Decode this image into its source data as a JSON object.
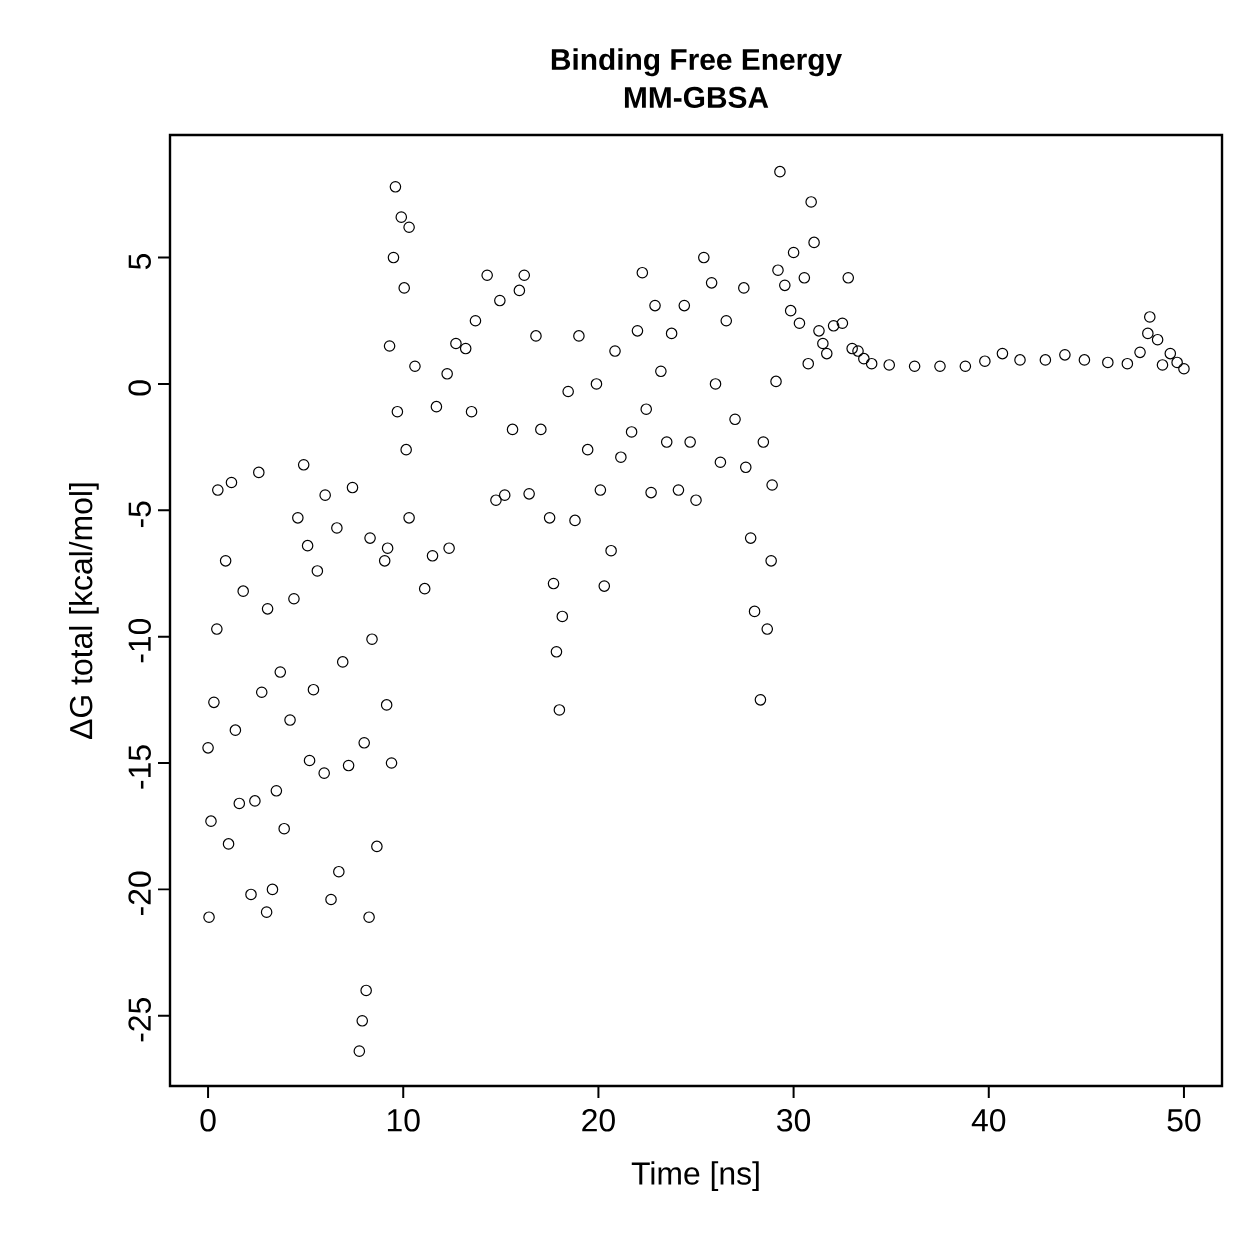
{
  "chart_data": {
    "type": "scatter",
    "title": "Binding Free Energy",
    "subtitle": "MM-GBSA",
    "xlabel": "Time [ns]",
    "ylabel": "ΔG total [kcal/mol]",
    "xlim": [
      -1.95,
      51.95
    ],
    "ylim": [
      -27.78,
      9.85
    ],
    "xticks": [
      0,
      10,
      20,
      30,
      40,
      50
    ],
    "yticks": [
      -25,
      -20,
      -15,
      -10,
      -5,
      0,
      5
    ],
    "marker": "circle",
    "grid": false,
    "series": [
      {
        "color": "#000000",
        "x": [
          0.05,
          0,
          0.15,
          0.3,
          0.5,
          0.45,
          0.9,
          1.2,
          1.05,
          1.4,
          1.8,
          2.2,
          2.6,
          2.75,
          3.0,
          3.05,
          3.3,
          3.7,
          3.9,
          4.4,
          4.6,
          4.9,
          5.1,
          5.2,
          5.6,
          6.0,
          5.95,
          6.3,
          6.7,
          6.6,
          7.4,
          7.75,
          7.9,
          8.1,
          8.25,
          8.3,
          8.4,
          8.65,
          9.05,
          9.15,
          9.4,
          9.2,
          9.3,
          9.5,
          9.6,
          9.9,
          10.3,
          9.7,
          10.05,
          10.15,
          10.3,
          10.6,
          11.1,
          11.5,
          11.7,
          12.25,
          12.35,
          12.7,
          13.2,
          13.5,
          13.7,
          14.3,
          14.75,
          14.95,
          15.2,
          15.6,
          15.95,
          16.2,
          16.45,
          16.8,
          17.05,
          17.5,
          17.7,
          17.85,
          18.0,
          18.15,
          18.45,
          18.8,
          19.0,
          19.45,
          19.9,
          20.1,
          20.3,
          20.65,
          20.85,
          21.15,
          21.7,
          22.0,
          22.25,
          22.45,
          22.7,
          22.9,
          23.2,
          23.5,
          23.75,
          24.1,
          24.4,
          24.7,
          25.0,
          25.4,
          25.8,
          26.0,
          26.25,
          26.55,
          27.0,
          27.45,
          27.55,
          27.8,
          28.0,
          28.3,
          28.45,
          28.65,
          28.85,
          28.9,
          29.1,
          29.2,
          29.3,
          29.55,
          29.85,
          30.0,
          30.3,
          30.55,
          30.75,
          30.9,
          31.05,
          31.3,
          31.5,
          31.7,
          32.05,
          32.5,
          32.8,
          33.0,
          33.3,
          33.6,
          34.0,
          34.9,
          36.2,
          37.5,
          38.8,
          39.8,
          40.7,
          41.6,
          42.9,
          43.9,
          44.9,
          46.1,
          47.1,
          47.75,
          48.15,
          48.25,
          48.65,
          48.9,
          49.3,
          49.65,
          50,
          1.6,
          2.4,
          3.5,
          4.2,
          5.4,
          6.9,
          7.2,
          8.0
        ],
        "values": [
          -21.1,
          -14.4,
          -17.3,
          -12.6,
          -4.2,
          -9.7,
          -7.0,
          -3.9,
          -18.2,
          -13.7,
          -8.2,
          -20.2,
          -3.5,
          -12.2,
          -20.9,
          -8.9,
          -20.0,
          -11.4,
          -17.6,
          -8.5,
          -5.3,
          -3.2,
          -6.4,
          -14.9,
          -7.4,
          -4.4,
          -15.4,
          -20.4,
          -19.3,
          -5.7,
          -4.1,
          -26.4,
          -25.2,
          -24.0,
          -21.1,
          -6.1,
          -10.1,
          -18.3,
          -7.0,
          -12.7,
          -15.0,
          -6.5,
          1.5,
          5.0,
          7.8,
          6.6,
          6.2,
          -1.1,
          3.8,
          -2.6,
          -5.3,
          0.7,
          -8.1,
          -6.8,
          -0.9,
          0.4,
          -6.5,
          1.6,
          1.4,
          -1.1,
          2.5,
          4.3,
          -4.6,
          3.3,
          -4.4,
          -1.8,
          3.7,
          4.3,
          -4.35,
          1.9,
          -1.8,
          -5.3,
          -7.9,
          -10.6,
          -12.9,
          -9.2,
          -0.3,
          -5.4,
          1.9,
          -2.6,
          0.0,
          -4.2,
          -8.0,
          -6.6,
          1.3,
          -2.9,
          -1.9,
          2.1,
          4.4,
          -1.0,
          -4.3,
          3.1,
          0.5,
          -2.3,
          2.0,
          -4.2,
          3.1,
          -2.3,
          -4.6,
          5.0,
          4.0,
          0.0,
          -3.1,
          2.5,
          -1.4,
          3.8,
          -3.3,
          -6.1,
          -9.0,
          -12.5,
          -2.3,
          -9.7,
          -7.0,
          -4.0,
          0.1,
          4.5,
          8.4,
          3.9,
          2.9,
          5.2,
          2.4,
          4.2,
          0.8,
          7.2,
          5.6,
          2.1,
          1.6,
          1.2,
          2.3,
          2.4,
          4.2,
          1.4,
          1.3,
          1.0,
          0.8,
          0.75,
          0.7,
          0.7,
          0.7,
          0.9,
          1.2,
          0.95,
          0.95,
          1.15,
          0.95,
          0.85,
          0.8,
          1.25,
          2.0,
          2.65,
          1.75,
          0.75,
          1.2,
          0.85,
          0.6,
          -16.6,
          -16.5,
          -16.1,
          -13.3,
          -12.1,
          -11.0,
          -15.1,
          -14.2
        ]
      }
    ]
  }
}
